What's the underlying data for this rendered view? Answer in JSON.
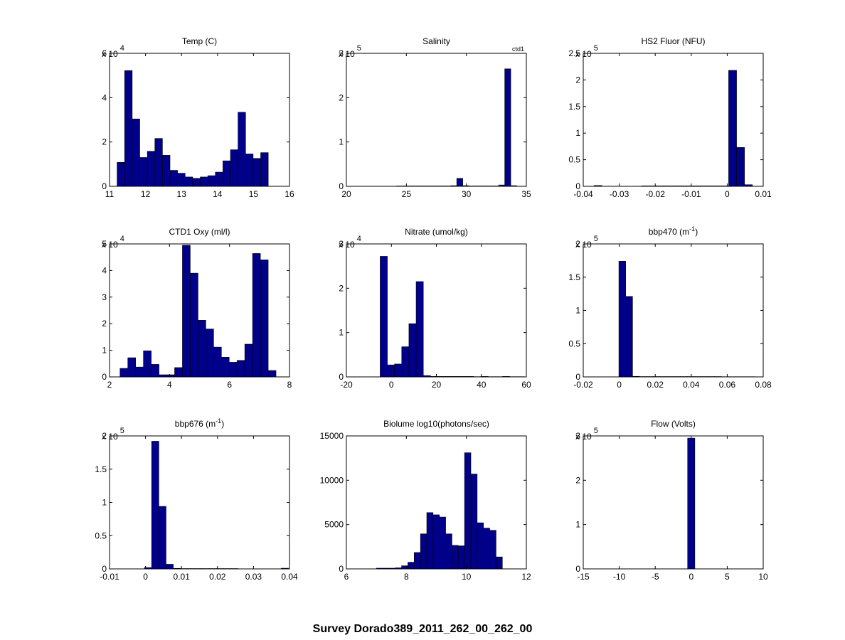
{
  "figure": {
    "suptitle": "Survey Dorado389_2011_262_00_262_00",
    "bar_color": "#00008B"
  },
  "chart_data": [
    {
      "type": "bar",
      "title": "Temp (C)",
      "exponent_label": "x 10",
      "exponent": "4",
      "xlim": [
        11,
        16
      ],
      "ylim": [
        0,
        60000
      ],
      "xticks": [
        11,
        12,
        13,
        14,
        15,
        16
      ],
      "yticks": [
        0,
        20000,
        40000,
        60000
      ],
      "ytick_labels": [
        "0",
        "2",
        "4",
        "6"
      ],
      "bin_edges": [
        11.21,
        11.42,
        11.63,
        11.84,
        12.05,
        12.26,
        12.47,
        12.68,
        12.89,
        13.1,
        13.31,
        13.52,
        13.73,
        13.94,
        14.15,
        14.36,
        14.57,
        14.78,
        14.99,
        15.2,
        15.41
      ],
      "values": [
        10800,
        52200,
        30400,
        13000,
        15800,
        21600,
        14000,
        7200,
        5900,
        4200,
        3600,
        4200,
        4800,
        6400,
        11500,
        16500,
        33400,
        14600,
        12600,
        15200
      ]
    },
    {
      "type": "bar",
      "title": "Salinity",
      "exponent_label": "x 10",
      "exponent": "5",
      "annotation": "ctd1",
      "xlim": [
        20,
        35
      ],
      "ylim": [
        0,
        300000
      ],
      "xticks": [
        20,
        25,
        30,
        35
      ],
      "yticks": [
        0,
        100000,
        200000,
        300000
      ],
      "ytick_labels": [
        "0",
        "1",
        "2",
        "3"
      ],
      "bin_edges": [
        24.2,
        24.7,
        25.2,
        25.7,
        26.2,
        26.7,
        27.2,
        27.7,
        28.2,
        28.7,
        29.2,
        29.7,
        30.2,
        30.7,
        31.2,
        31.7,
        32.2,
        32.7,
        33.2,
        33.7,
        34.2
      ],
      "values": [
        800,
        800,
        800,
        800,
        800,
        800,
        800,
        800,
        800,
        1500,
        18000,
        1500,
        800,
        800,
        800,
        800,
        800,
        3000,
        265000,
        1500
      ]
    },
    {
      "type": "bar",
      "title": "HS2 Fluor (NFU)",
      "exponent_label": "x 10",
      "exponent": "5",
      "xlim": [
        -0.04,
        0.01
      ],
      "ylim": [
        0,
        250000
      ],
      "xticks": [
        -0.04,
        -0.03,
        -0.02,
        -0.01,
        0,
        0.01
      ],
      "xtick_labels": [
        "-0.04",
        "-0.03",
        "-0.02",
        "-0.01",
        "0",
        "0.01"
      ],
      "yticks": [
        0,
        50000,
        100000,
        150000,
        200000,
        250000
      ],
      "ytick_labels": [
        "0",
        "0.5",
        "1",
        "1.5",
        "2",
        "2.5"
      ],
      "bin_edges": [
        -0.037,
        -0.0348,
        -0.0326,
        -0.0304,
        -0.0282,
        -0.026,
        -0.0238,
        -0.0216,
        -0.0194,
        -0.0172,
        -0.015,
        -0.0128,
        -0.0106,
        -0.0084,
        -0.0062,
        -0.004,
        -0.0018,
        0.0004,
        0.0026,
        0.0048,
        0.007
      ],
      "values": [
        1500,
        200,
        200,
        200,
        200,
        200,
        800,
        800,
        800,
        800,
        800,
        800,
        800,
        800,
        800,
        800,
        800,
        218000,
        73000,
        3000
      ]
    },
    {
      "type": "bar",
      "title": "CTD1 Oxy (ml/l)",
      "exponent_label": "x 10",
      "exponent": "4",
      "xlim": [
        2,
        8
      ],
      "ylim": [
        0,
        50000
      ],
      "xticks": [
        2,
        4,
        6,
        8
      ],
      "yticks": [
        0,
        10000,
        20000,
        30000,
        40000,
        50000
      ],
      "ytick_labels": [
        "0",
        "1",
        "2",
        "3",
        "4",
        "5"
      ],
      "bin_edges": [
        2.35,
        2.61,
        2.87,
        3.13,
        3.39,
        3.65,
        3.91,
        4.17,
        4.43,
        4.69,
        4.95,
        5.21,
        5.47,
        5.73,
        5.99,
        6.25,
        6.51,
        6.77,
        7.03,
        7.29,
        7.55
      ],
      "values": [
        3200,
        7200,
        3700,
        9800,
        4700,
        800,
        800,
        3500,
        49500,
        39000,
        21300,
        18000,
        11200,
        7400,
        5500,
        6200,
        12300,
        46400,
        44000,
        2400
      ]
    },
    {
      "type": "bar",
      "title": "Nitrate (umol/kg)",
      "exponent_label": "x 10",
      "exponent": "4",
      "xlim": [
        -20,
        60
      ],
      "ylim": [
        0,
        30000
      ],
      "xticks": [
        -20,
        0,
        20,
        40,
        60
      ],
      "yticks": [
        0,
        10000,
        20000,
        30000
      ],
      "ytick_labels": [
        "0",
        "1",
        "2",
        "3"
      ],
      "bin_edges": [
        -5.0,
        -1.8,
        1.4,
        4.6,
        7.8,
        11.0,
        14.2,
        17.4,
        20.6,
        23.8,
        27.0,
        30.2,
        33.4,
        36.6,
        39.8,
        43.0,
        46.2,
        49.4,
        52.6,
        55.8,
        59.0
      ],
      "values": [
        27200,
        2700,
        2900,
        6800,
        12000,
        21500,
        300,
        100,
        100,
        100,
        100,
        100,
        100,
        50,
        100,
        50,
        50,
        100,
        50,
        50
      ]
    },
    {
      "type": "bar",
      "title": "bbp470 (m",
      "title_superscript": "-1",
      "title_suffix": ")",
      "exponent_label": "x 10",
      "exponent": "5",
      "xlim": [
        -0.02,
        0.08
      ],
      "ylim": [
        0,
        200000
      ],
      "xticks": [
        -0.02,
        0,
        0.02,
        0.04,
        0.06,
        0.08
      ],
      "xtick_labels": [
        "-0.02",
        "0",
        "0.02",
        "0.04",
        "0.06",
        "0.08"
      ],
      "yticks": [
        0,
        50000,
        100000,
        150000,
        200000
      ],
      "ytick_labels": [
        "0",
        "0.5",
        "1",
        "1.5",
        "2"
      ],
      "bin_edges": [
        -0.0002,
        0.0036,
        0.0074,
        0.0112,
        0.015,
        0.0188,
        0.0226,
        0.0264,
        0.0302,
        0.034,
        0.0378,
        0.0416,
        0.0454,
        0.0492,
        0.053,
        0.0568,
        0.0606,
        0.0644,
        0.0682,
        0.072,
        0.0758
      ],
      "values": [
        174000,
        121000,
        800,
        500,
        500,
        500,
        500,
        500,
        500,
        500,
        500,
        500,
        500,
        500,
        500,
        300,
        300,
        300,
        300,
        300
      ]
    },
    {
      "type": "bar",
      "title": "bbp676 (m",
      "title_superscript": "-1",
      "title_suffix": ")",
      "exponent_label": "x 10",
      "exponent": "5",
      "xlim": [
        -0.01,
        0.04
      ],
      "ylim": [
        0,
        200000
      ],
      "xticks": [
        -0.01,
        0,
        0.01,
        0.02,
        0.03,
        0.04
      ],
      "xtick_labels": [
        "-0.01",
        "0",
        "0.01",
        "0.02",
        "0.03",
        "0.04"
      ],
      "yticks": [
        0,
        50000,
        100000,
        150000,
        200000
      ],
      "ytick_labels": [
        "0",
        "0.5",
        "1",
        "1.5",
        "2"
      ],
      "bin_edges": [
        -0.0003,
        0.0017,
        0.0037,
        0.0057,
        0.0077,
        0.0097,
        0.0117,
        0.0137,
        0.0157,
        0.0177,
        0.0197,
        0.0217,
        0.0237,
        0.0257,
        0.0277,
        0.0297,
        0.0317,
        0.0337,
        0.0357,
        0.0377,
        0.0397
      ],
      "values": [
        2000,
        192000,
        94000,
        7000,
        800,
        500,
        500,
        500,
        500,
        500,
        500,
        500,
        500,
        200,
        200,
        200,
        200,
        200,
        200,
        1000
      ]
    },
    {
      "type": "bar",
      "title": "Biolume log10(photons/sec)",
      "xlim": [
        6,
        12
      ],
      "ylim": [
        0,
        15000
      ],
      "xticks": [
        6,
        8,
        10,
        12
      ],
      "yticks": [
        0,
        5000,
        10000,
        15000
      ],
      "ytick_labels": [
        "0",
        "5000",
        "10000",
        "15000"
      ],
      "bin_edges": [
        7.0,
        7.21,
        7.42,
        7.63,
        7.84,
        8.05,
        8.26,
        8.47,
        8.68,
        8.89,
        9.1,
        9.31,
        9.52,
        9.73,
        9.94,
        10.15,
        10.36,
        10.57,
        10.78,
        10.99,
        11.2
      ],
      "values": [
        80,
        80,
        80,
        120,
        350,
        750,
        1850,
        3950,
        6350,
        6100,
        5850,
        3950,
        2650,
        2600,
        13100,
        10700,
        5200,
        4600,
        4350,
        1350
      ]
    },
    {
      "type": "bar",
      "title": "Flow (Volts)",
      "exponent_label": "x 10",
      "exponent": "5",
      "xlim": [
        -15,
        10
      ],
      "ylim": [
        0,
        300000
      ],
      "xticks": [
        -15,
        -10,
        -5,
        0,
        5,
        10
      ],
      "yticks": [
        0,
        100000,
        200000,
        300000
      ],
      "ytick_labels": [
        "0",
        "1",
        "2",
        "3"
      ],
      "bin_edges": [
        -0.5,
        0.5
      ],
      "values": [
        295000
      ]
    }
  ]
}
